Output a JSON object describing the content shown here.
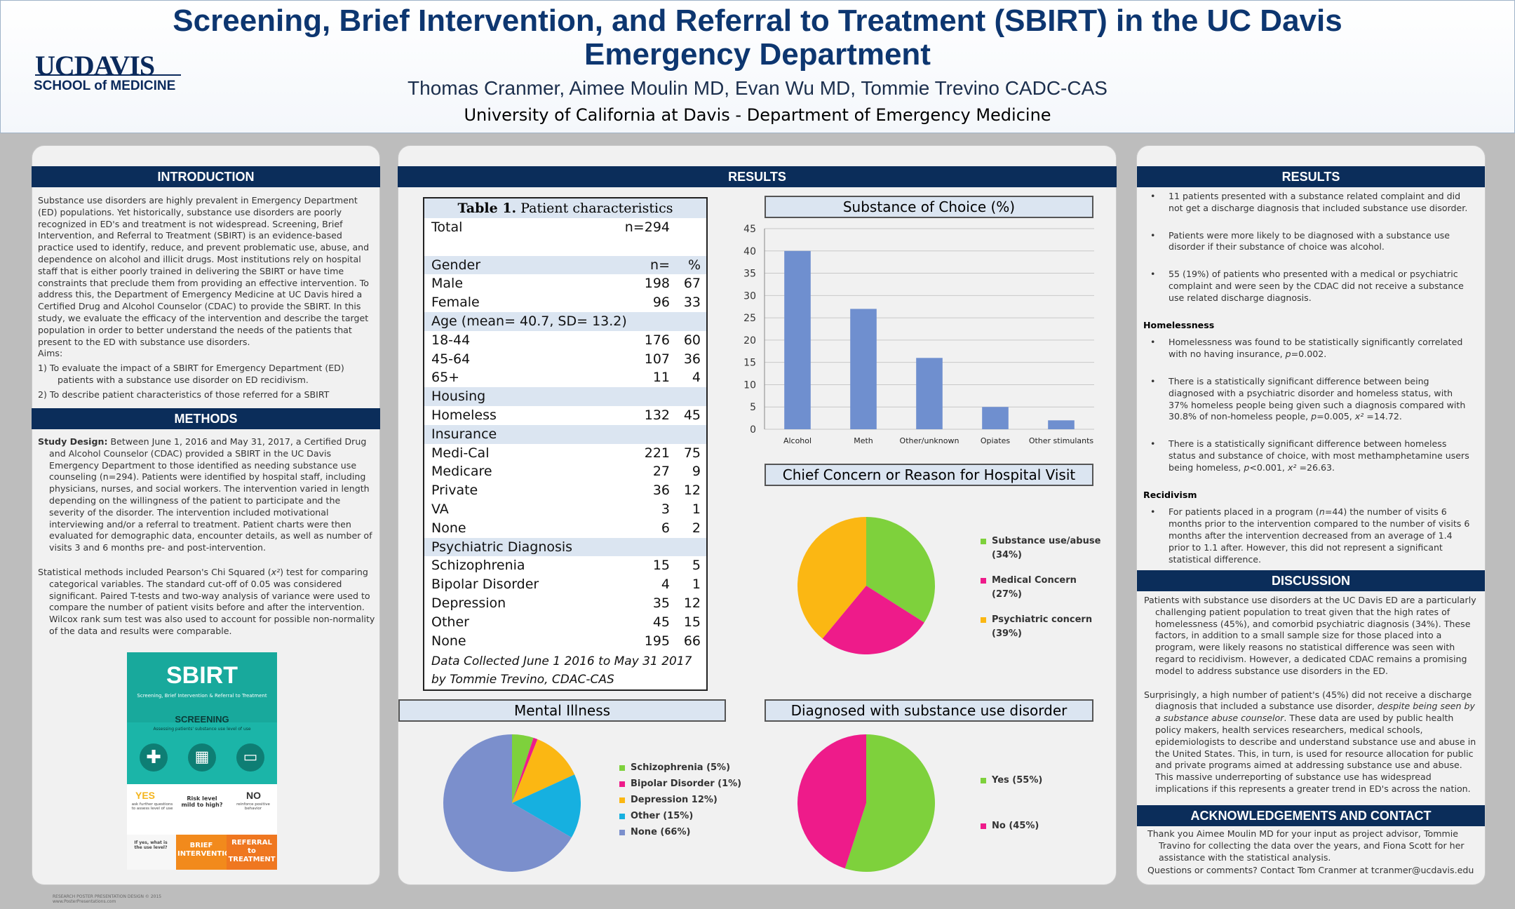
{
  "header": {
    "logo_main": "UCDAVIS",
    "logo_sub": "SCHOOL of MEDICINE",
    "title": "Screening, Brief Intervention, and Referral to Treatment (SBIRT) in the UC Davis Emergency Department",
    "authors": "Thomas Cranmer, Aimee Moulin MD, Evan Wu MD, Tommie Trevino CADC-CAS",
    "affiliation": "University of California at Davis - Department of Emergency Medicine"
  },
  "introduction": {
    "heading": "INTRODUCTION",
    "body": "Substance use disorders are highly prevalent in Emergency Department (ED) populations. Yet historically, substance use disorders are poorly recognized in ED's and treatment is not widespread. Screening, Brief Intervention, and Referral to Treatment (SBIRT) is an evidence-based practice used to identify, reduce, and prevent problematic use, abuse, and dependence on alcohol and illicit drugs. Most institutions rely on hospital staff that is either poorly trained in delivering the SBIRT or have time constraints that preclude them from providing an effective intervention. To address this, the Department of Emergency Medicine at UC Davis hired a Certified Drug and Alcohol Counselor (CDAC) to provide the SBIRT. In this study, we evaluate the efficacy of the intervention and describe the target population in order to better understand the needs of the patients that present to the ED with substance use disorders.",
    "aims_label": "Aims:",
    "aim1": "1)    To evaluate the impact of a SBIRT for Emergency Department (ED) patients with a substance use disorder on ED recidivism.",
    "aim2": "2)    To describe patient characteristics of those referred for a SBIRT"
  },
  "methods": {
    "heading": "METHODS",
    "design_label": "Study Design:",
    "design": " Between June 1, 2016 and May 31, 2017, a Certified Drug and Alcohol Counselor (CDAC) provided a SBIRT in the UC Davis Emergency Department to those identified as needing substance use counseling (n=294). Patients were identified by hospital staff, including physicians, nurses, and social workers. The intervention varied in length depending on the willingness of the patient to participate and the severity of the disorder. The intervention included motivational interviewing and/or a referral to treatment. Patient charts were then evaluated for demographic data, encounter details, as well as number of visits 3 and 6 months pre- and post-intervention.",
    "stats_a": "Statistical methods included Pearson's Chi Squared (",
    "stats_chi": "x²",
    "stats_b": ") test for comparing categorical variables. The standard cut-off of 0.05 was considered significant. Paired T-tests and two-way analysis of variance were used to compare the number of patient visits before and after the intervention. Wilcox rank sum test was also used to account for possible non-normality of the data and results were comparable."
  },
  "sbirt_graphic": {
    "title": "SBIRT",
    "subtitle": "Screening, Brief Intervention & Referral to Treatment",
    "screening": "SCREENING",
    "screening_sub": "Assessing patients' substance use level of use",
    "yes": "YES",
    "yes_sub": "ask further questions to assess level of use",
    "risk": "Risk level mild to high?",
    "no": "NO",
    "no_sub": "reinforce positive behavior",
    "ifyes": "If yes, what is the use level?",
    "brief": "BRIEF INTERVENTION",
    "referral": "REFERRAL to TREATMENT"
  },
  "results_mid": {
    "heading": "RESULTS"
  },
  "table1": {
    "title_bold": "Table 1.",
    "title_rest": " Patient characteristics",
    "rows": [
      {
        "label": "Total",
        "n": "n=294",
        "p": "",
        "shade": false
      },
      {
        "label": "",
        "n": "",
        "p": "",
        "shade": false
      },
      {
        "label": "Gender",
        "n": "n=",
        "p": "%",
        "shade": true
      },
      {
        "label": "Male",
        "n": "198",
        "p": "67",
        "shade": false
      },
      {
        "label": "Female",
        "n": "96",
        "p": "33",
        "shade": false
      },
      {
        "label": "Age  (mean= 40.7,  SD= 13.2)",
        "n": "",
        "p": "",
        "shade": true
      },
      {
        "label": "18-44",
        "n": "176",
        "p": "60",
        "shade": false
      },
      {
        "label": "45-64",
        "n": "107",
        "p": "36",
        "shade": false
      },
      {
        "label": "65+",
        "n": "11",
        "p": "4",
        "shade": false
      },
      {
        "label": "Housing",
        "n": "",
        "p": "",
        "shade": true
      },
      {
        "label": "Homeless",
        "n": "132",
        "p": "45",
        "shade": false
      },
      {
        "label": "Insurance",
        "n": "",
        "p": "",
        "shade": true
      },
      {
        "label": "Medi-Cal",
        "n": "221",
        "p": "75",
        "shade": false
      },
      {
        "label": "Medicare",
        "n": "27",
        "p": "9",
        "shade": false
      },
      {
        "label": "Private",
        "n": "36",
        "p": "12",
        "shade": false
      },
      {
        "label": "VA",
        "n": "3",
        "p": "1",
        "shade": false
      },
      {
        "label": "None",
        "n": "6",
        "p": "2",
        "shade": false
      },
      {
        "label": "Psychiatric Diagnosis",
        "n": "",
        "p": "",
        "shade": true
      },
      {
        "label": "Schizophrenia",
        "n": "15",
        "p": "5",
        "shade": false
      },
      {
        "label": "Bipolar Disorder",
        "n": "4",
        "p": "1",
        "shade": false
      },
      {
        "label": "Depression",
        "n": "35",
        "p": "12",
        "shade": false
      },
      {
        "label": "Other",
        "n": "45",
        "p": "15",
        "shade": false
      },
      {
        "label": "None",
        "n": "195",
        "p": "66",
        "shade": false
      }
    ],
    "note1": "Data Collected June 1 2016 to May 31 2017",
    "note2": "by Tommie Trevino, CDAC-CAS"
  },
  "chart_data": [
    {
      "type": "bar",
      "title": "Substance of Choice (%)",
      "categories": [
        "Alcohol",
        "Meth",
        "Other/unknown",
        "Opiates",
        "Other stimulants"
      ],
      "values": [
        40,
        27,
        16,
        5,
        2
      ],
      "ylim": [
        0,
        45
      ],
      "yticks": [
        "0",
        "5",
        "10",
        "15",
        "20",
        "25",
        "30",
        "35",
        "40",
        "45"
      ],
      "grid": true,
      "color": "#6f8fcf"
    },
    {
      "type": "pie",
      "title": "Chief Concern or Reason for Hospital Visit",
      "labels": [
        "Substance use/abuse",
        "(34%)",
        "Medical Concern",
        "(27%)",
        "Psychiatric concern",
        "(39%)"
      ],
      "slices": [
        {
          "name": "Substance use/abuse",
          "value": 34,
          "color": "#7ed13c"
        },
        {
          "name": "Medical Concern",
          "value": 27,
          "color": "#ee1b8a"
        },
        {
          "name": "Psychiatric concern",
          "value": 39,
          "color": "#fbb713"
        }
      ]
    },
    {
      "type": "pie",
      "title": "Mental Illness",
      "slices": [
        {
          "name": "Schizophrenia (5%)",
          "value": 5,
          "color": "#7ed13c"
        },
        {
          "name": "Bipolar Disorder (1%)",
          "value": 1,
          "color": "#ee1b8a"
        },
        {
          "name": "Depression 12%)",
          "value": 12,
          "color": "#fbb713"
        },
        {
          "name": "Other (15%)",
          "value": 15,
          "color": "#16b0e0"
        },
        {
          "name": "None (66%)",
          "value": 66,
          "color": "#7b8fcc"
        }
      ]
    },
    {
      "type": "pie",
      "title": "Diagnosed with substance use disorder",
      "slices": [
        {
          "name": "Yes (55%)",
          "value": 55,
          "color": "#7ed13c"
        },
        {
          "name": "No (45%)",
          "value": 45,
          "color": "#ee1b8a"
        }
      ]
    }
  ],
  "results_right": {
    "heading": "RESULTS",
    "b1": "11 patients presented with a substance related complaint and did not get a discharge diagnosis that included substance use disorder.",
    "b2": "Patients were more likely to be diagnosed with a substance use disorder if their substance of choice was alcohol.",
    "b3": "55 (19%) of patients who presented with a medical or psychiatric complaint and were seen by the CDAC did not receive a substance use related discharge diagnosis.",
    "homeless_head": "Homelessness",
    "h1a": " Homelessness was found to be statistically significantly correlated with no having insurance, ",
    "h1b": "p",
    "h1c": "=0.002.",
    "h2a": "There is a statistically significant difference between being diagnosed with a psychiatric disorder and homeless status, with 37% homeless people being given such a diagnosis compared with 30.8% of non-homeless people, ",
    "h2b": "p",
    "h2c": "=0.005, ",
    "h2d": "x²",
    "h2e": " =14.72.",
    "h3a": "There is a statistically significant difference between homeless status and substance of choice, with most methamphetamine users being homeless, ",
    "h3b": "p",
    "h3c": "<0.001, ",
    "h3d": "x²",
    "h3e": " =26.63.",
    "recid_head": "Recidivism",
    "r1a": "For patients placed in a program (",
    "r1b": "n",
    "r1c": "=44) the number of visits 6 months prior to the intervention compared to the number of visits 6 months after the intervention decreased from an average of 1.4 prior to 1.1 after. However, this did not represent a significant statistical difference."
  },
  "discussion": {
    "heading": "DISCUSSION",
    "p1": "Patients with substance use disorders at the UC Davis ED are a particularly challenging patient population to treat given that the high rates of homelessness (45%), and comorbid psychiatric diagnosis (34%).  These factors, in addition to a small sample size for those placed into a program, were likely reasons no statistical difference was seen with regard to recidivism. However, a dedicated CDAC remains a promising model to address substance use disorders in the ED.",
    "p2a": "Surprisingly, a high number of patient's (45%) did not receive a discharge diagnosis that included a substance use disorder, ",
    "p2b": "despite being seen by a substance abuse counselor",
    "p2c": ". These data are used by public health policy makers, health services researchers, medical schools, epidemiologists to describe and understand substance use and abuse in the United States. This, in turn, is used for resource allocation for public and private programs aimed at addressing substance use and abuse. This massive underreporting of substance use has widespread implications if this represents a greater trend in ED's across the nation."
  },
  "acknowledgements": {
    "heading": "ACKNOWLEDGEMENTS AND CONTACT",
    "p1": "Thank you Aimee Moulin MD for your input as project advisor, Tommie Travino for collecting the data over the years, and Fiona Scott for her assistance with the statistical analysis.",
    "p2": "Questions or comments? Contact Tom Cranmer at tcranmer@ucdavis.edu"
  },
  "footer": {
    "line1": "RESEARCH POSTER PRESENTATION DESIGN © 2015",
    "line2": "www.PosterPresentations.com"
  }
}
